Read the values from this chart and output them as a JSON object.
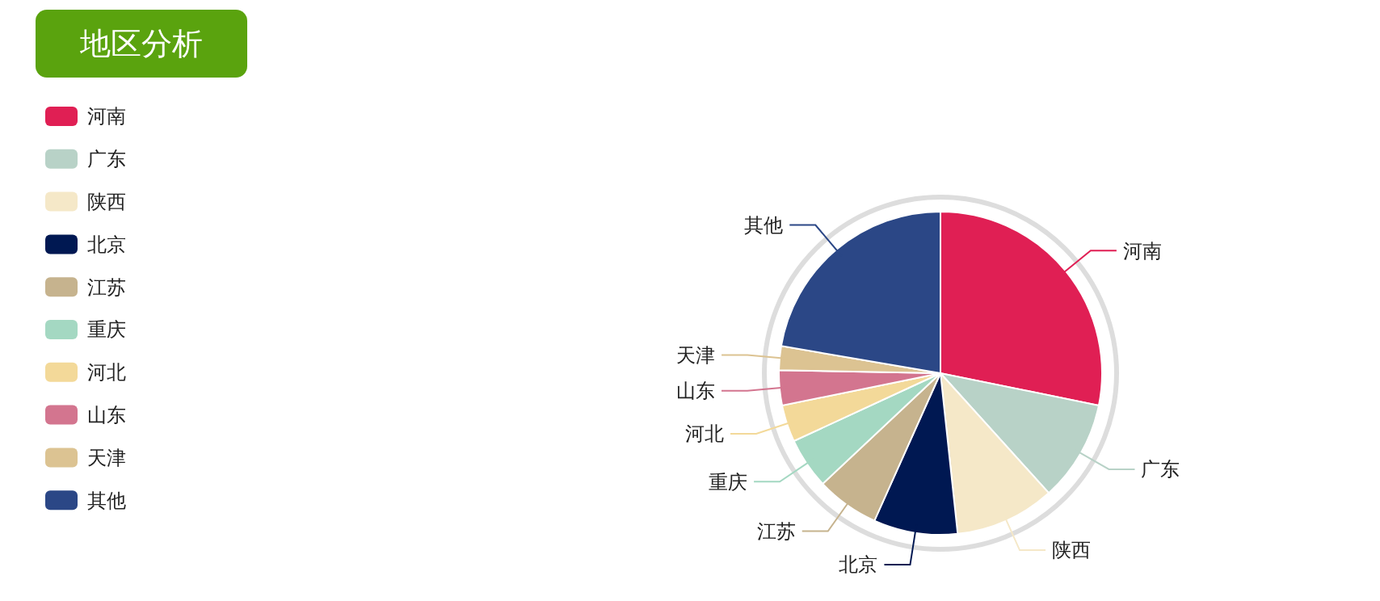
{
  "chart_data": {
    "type": "pie",
    "title": "地区分析",
    "categories": [
      "河南",
      "广东",
      "陕西",
      "北京",
      "江苏",
      "重庆",
      "河北",
      "山东",
      "天津",
      "其他"
    ],
    "values": [
      28.2,
      10.1,
      10.0,
      8.4,
      6.3,
      5.1,
      3.7,
      3.5,
      2.4,
      22.3
    ],
    "colors": [
      "#e01f54",
      "#b8d2c7",
      "#f5e8c8",
      "#001852",
      "#c6b38e",
      "#a4d8c2",
      "#f3d999",
      "#d3758f",
      "#dcc392",
      "#2b4786"
    ],
    "legend": "top left"
  }
}
